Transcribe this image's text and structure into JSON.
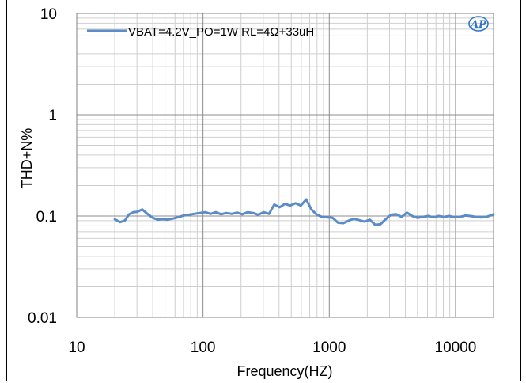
{
  "chart_data": {
    "type": "line",
    "title": "",
    "xlabel": "Frequency(HZ)",
    "ylabel": "THD+N%",
    "x_scale": "log",
    "y_scale": "log",
    "xlim": [
      20,
      20000
    ],
    "ylim": [
      0.01,
      10
    ],
    "x_tick_labels": [
      "10",
      "100",
      "1000",
      "10000"
    ],
    "x_tick_values": [
      10,
      100,
      1000,
      10000
    ],
    "y_tick_labels": [
      "10",
      "1",
      "0.1",
      "0.01"
    ],
    "y_tick_values": [
      10,
      1,
      0.1,
      0.01
    ],
    "grid": true,
    "legend_position": "top-left",
    "series": [
      {
        "name": "VBAT=4.2V_PO=1W RL=4Ω+33uH",
        "color": "#5b8cc8",
        "x": [
          20,
          22,
          24,
          26,
          28,
          30,
          33,
          36,
          40,
          44,
          48,
          52,
          57,
          63,
          70,
          77,
          85,
          94,
          104,
          115,
          126,
          139,
          153,
          169,
          186,
          205,
          226,
          249,
          274,
          302,
          333,
          367,
          404,
          445,
          490,
          540,
          595,
          656,
          722,
          796,
          877,
          966,
          1064,
          1172,
          1291,
          1422,
          1567,
          1726,
          1901,
          2094,
          2307,
          2541,
          2799,
          3084,
          3397,
          3742,
          4122,
          4541,
          5002,
          5510,
          6070,
          6686,
          7365,
          8113,
          8937,
          9845,
          10845,
          11946,
          13159,
          14496,
          15968,
          17589,
          20000
        ],
        "values": [
          0.093,
          0.087,
          0.09,
          0.104,
          0.109,
          0.11,
          0.116,
          0.106,
          0.096,
          0.092,
          0.093,
          0.092,
          0.094,
          0.097,
          0.101,
          0.103,
          0.105,
          0.107,
          0.109,
          0.105,
          0.109,
          0.104,
          0.107,
          0.105,
          0.108,
          0.104,
          0.109,
          0.107,
          0.103,
          0.109,
          0.105,
          0.13,
          0.122,
          0.132,
          0.127,
          0.134,
          0.127,
          0.146,
          0.116,
          0.103,
          0.098,
          0.097,
          0.096,
          0.086,
          0.085,
          0.09,
          0.094,
          0.091,
          0.088,
          0.092,
          0.082,
          0.083,
          0.093,
          0.103,
          0.104,
          0.098,
          0.108,
          0.1,
          0.096,
          0.098,
          0.1,
          0.097,
          0.1,
          0.098,
          0.1,
          0.097,
          0.098,
          0.101,
          0.1,
          0.098,
          0.097,
          0.098,
          0.104
        ]
      }
    ]
  },
  "logo": {
    "text": "AP"
  }
}
